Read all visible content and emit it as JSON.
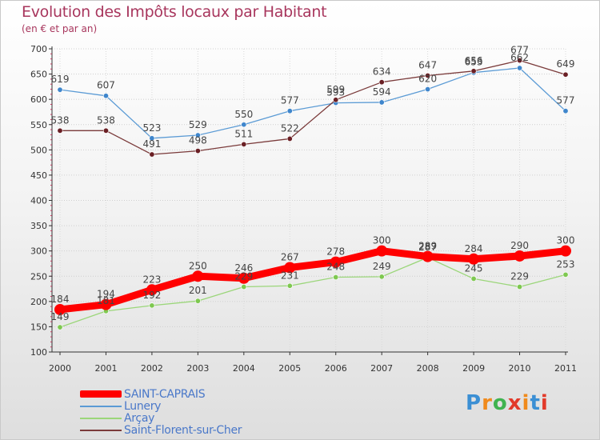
{
  "header": {
    "title": "Evolution des Impôts locaux par Habitant",
    "subtitle": "(en € et par an)"
  },
  "logo": {
    "text": "Proxiti",
    "letter_colors": [
      "#3b8fd4",
      "#f08a1c",
      "#3fb34f",
      "#e23a2a",
      "#f08a1c",
      "#3b8fd4",
      "#e23a2a"
    ]
  },
  "chart_data": {
    "type": "line",
    "categories": [
      "2000",
      "2001",
      "2002",
      "2003",
      "2004",
      "2005",
      "2006",
      "2007",
      "2008",
      "2009",
      "2010",
      "2011"
    ],
    "ylim": [
      100,
      700
    ],
    "yticks": [
      100,
      150,
      200,
      250,
      300,
      350,
      400,
      450,
      500,
      550,
      600,
      650,
      700
    ],
    "grid": true,
    "series": [
      {
        "name": "Lunery",
        "color": "#5b9bd5",
        "marker": "#3f86cc",
        "values": [
          619,
          607,
          523,
          529,
          550,
          577,
          593,
          594,
          620,
          653,
          662,
          577
        ]
      },
      {
        "name": "Saint-Florent-sur-Cher",
        "color": "#7a3a3a",
        "marker": "#6a1f24",
        "values": [
          538,
          538,
          491,
          498,
          511,
          522,
          599,
          634,
          647,
          656,
          677,
          649
        ]
      },
      {
        "name": "Arçay",
        "color": "#9bd67a",
        "marker": "#7ec850",
        "values": [
          149,
          181,
          192,
          201,
          229,
          231,
          248,
          249,
          287,
          245,
          229,
          253
        ]
      },
      {
        "name": "SAINT-CAPRAIS",
        "color": "#ff0000",
        "marker": "#ff0000",
        "values": [
          184,
          194,
          223,
          250,
          246,
          267,
          278,
          300,
          289,
          284,
          290,
          300
        ]
      }
    ],
    "legend_order": [
      "SAINT-CAPRAIS",
      "Lunery",
      "Arçay",
      "Saint-Florent-sur-Cher"
    ],
    "legend_position": "bottom-left"
  }
}
